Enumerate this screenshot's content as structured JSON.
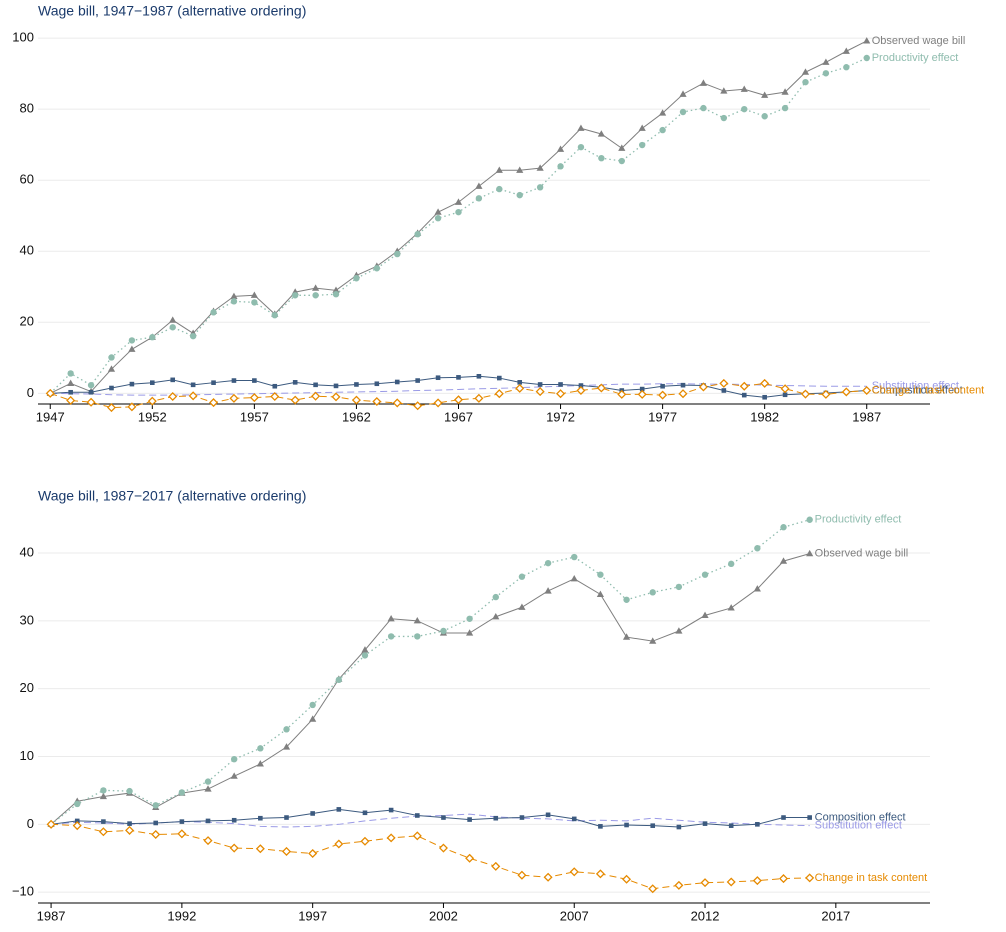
{
  "chart_data": [
    {
      "type": "line",
      "title": "Wage bill, 1947−1987 (alternative ordering)",
      "x": [
        1947,
        1948,
        1949,
        1950,
        1951,
        1952,
        1953,
        1954,
        1955,
        1956,
        1957,
        1958,
        1959,
        1960,
        1961,
        1962,
        1963,
        1964,
        1965,
        1966,
        1967,
        1968,
        1969,
        1970,
        1971,
        1972,
        1973,
        1974,
        1975,
        1976,
        1977,
        1978,
        1979,
        1980,
        1981,
        1982,
        1983,
        1984,
        1985,
        1986,
        1987
      ],
      "xlim": [
        1946.4,
        1990.1
      ],
      "xticks": [
        1947,
        1952,
        1957,
        1962,
        1967,
        1972,
        1977,
        1982,
        1987
      ],
      "ylim": [
        -3,
        102
      ],
      "yticks": [
        0,
        20,
        40,
        60,
        80,
        100
      ],
      "grid": true,
      "series": [
        {
          "name": "Observed wage bill",
          "color": "#7f7f7f",
          "marker": "triangle",
          "dash": "solid",
          "values": [
            0,
            2.8,
            0.5,
            6.8,
            12.4,
            15.8,
            20.6,
            16.9,
            23.1,
            27.3,
            27.6,
            22.3,
            28.5,
            29.6,
            29.0,
            33.2,
            35.8,
            40.0,
            45.1,
            51.0,
            53.8,
            58.3,
            62.8,
            62.8,
            63.4,
            68.7,
            74.6,
            73.0,
            69.0,
            74.6,
            78.9,
            84.2,
            87.3,
            85.1,
            85.6,
            83.9,
            84.8,
            90.4,
            93.2,
            96.3,
            99.2
          ]
        },
        {
          "name": "Productivity effect",
          "color": "#8fbcae",
          "marker": "circle",
          "dash": "dotted",
          "values": [
            0,
            5.6,
            2.3,
            10.1,
            14.9,
            15.8,
            18.6,
            16.1,
            22.8,
            25.9,
            25.6,
            22.0,
            27.6,
            27.6,
            27.9,
            32.4,
            35.2,
            39.2,
            44.8,
            49.3,
            51.0,
            54.9,
            57.5,
            55.8,
            58.0,
            63.9,
            69.3,
            66.2,
            65.4,
            69.9,
            74.1,
            79.2,
            80.3,
            77.5,
            80.0,
            78.0,
            80.3,
            87.6,
            90.1,
            91.8,
            94.4
          ]
        },
        {
          "name": "Substitution effect",
          "color": "#9a9ae6",
          "marker": "none",
          "dash": "dashed",
          "values": [
            0,
            -0.1,
            -0.2,
            -0.4,
            -0.5,
            -0.5,
            -0.5,
            -0.4,
            -0.3,
            -0.2,
            -0.1,
            0,
            0.1,
            0.2,
            0.3,
            0.4,
            0.5,
            0.6,
            0.8,
            0.9,
            1.1,
            1.3,
            1.4,
            1.6,
            1.8,
            2.0,
            2.2,
            2.4,
            2.6,
            2.6,
            2.7,
            2.7,
            2.6,
            2.6,
            2.5,
            2.3,
            2.2,
            2.1,
            2.0,
            2.0,
            2.0
          ]
        },
        {
          "name": "Composition effect",
          "color": "#3c5a7f",
          "marker": "square",
          "dash": "solid",
          "values": [
            0,
            0.3,
            0.3,
            1.5,
            2.6,
            3.0,
            3.8,
            2.4,
            3.0,
            3.6,
            3.6,
            2.0,
            3.1,
            2.4,
            2.1,
            2.5,
            2.7,
            3.2,
            3.6,
            4.4,
            4.5,
            4.8,
            4.3,
            3.1,
            2.5,
            2.5,
            2.2,
            1.7,
            0.8,
            1.2,
            2.0,
            2.3,
            2.2,
            0.8,
            -0.5,
            -1.1,
            -0.4,
            -0.1,
            0.1,
            0.4,
            0.8
          ]
        },
        {
          "name": "Change in task content",
          "color": "#e68a00",
          "marker": "diamond",
          "dash": "dashed",
          "values": [
            0,
            -2.0,
            -2.5,
            -4.0,
            -3.8,
            -2.2,
            -0.9,
            -0.7,
            -2.6,
            -1.4,
            -1.2,
            -0.9,
            -1.9,
            -0.8,
            -1.0,
            -1.9,
            -2.3,
            -2.7,
            -3.5,
            -2.7,
            -1.8,
            -1.4,
            -0.1,
            1.4,
            0.5,
            -0.1,
            0.8,
            1.5,
            -0.3,
            -0.3,
            -0.5,
            -0.1,
            1.8,
            2.8,
            2.0,
            2.8,
            1.3,
            -0.2,
            -0.3,
            0.4,
            0.8
          ]
        }
      ]
    },
    {
      "type": "line",
      "title": "Wage bill, 1987−2017 (alternative ordering)",
      "x": [
        1987,
        1988,
        1989,
        1990,
        1991,
        1992,
        1993,
        1994,
        1995,
        1996,
        1997,
        1998,
        1999,
        2000,
        2001,
        2002,
        2003,
        2004,
        2005,
        2006,
        2007,
        2008,
        2009,
        2010,
        2011,
        2012,
        2013,
        2014,
        2015,
        2016
      ],
      "xlim": [
        1986.5,
        2020.6
      ],
      "xticks": [
        1987,
        1992,
        1997,
        2002,
        2007,
        2012,
        2017
      ],
      "ylim": [
        -11.6,
        45.6
      ],
      "yticks": [
        {
          "value": -10,
          "label": "−10"
        },
        0,
        10,
        20,
        30,
        40
      ],
      "grid": true,
      "series": [
        {
          "name": "Observed wage bill",
          "color": "#7f7f7f",
          "marker": "triangle",
          "dash": "solid",
          "values": [
            0,
            3.4,
            4.1,
            4.6,
            2.5,
            4.6,
            5.2,
            7.1,
            8.9,
            11.4,
            15.5,
            21.4,
            25.7,
            30.3,
            30.0,
            28.2,
            28.2,
            30.6,
            32.0,
            34.4,
            36.2,
            33.9,
            27.6,
            27.0,
            28.5,
            30.8,
            31.9,
            34.7,
            38.8,
            39.9
          ]
        },
        {
          "name": "Productivity effect",
          "color": "#8fbcae",
          "marker": "circle",
          "dash": "dotted",
          "values": [
            0,
            3.0,
            5.0,
            4.9,
            2.8,
            4.7,
            6.3,
            9.6,
            11.2,
            14.0,
            17.6,
            21.3,
            24.9,
            27.7,
            27.7,
            28.5,
            30.3,
            33.5,
            36.5,
            38.5,
            39.4,
            36.8,
            33.1,
            34.2,
            35.0,
            36.8,
            38.4,
            40.7,
            43.8,
            44.9
          ]
        },
        {
          "name": "Substitution effect",
          "color": "#9a9ae6",
          "marker": "none",
          "dash": "dashed",
          "values": [
            0,
            0.3,
            0.2,
            0,
            0.2,
            0.4,
            0.3,
            0.1,
            -0.3,
            -0.4,
            -0.3,
            0,
            0.5,
            0.9,
            1.2,
            1.3,
            1.5,
            1.1,
            0.9,
            0.8,
            0.5,
            0.6,
            0.5,
            0.9,
            0.6,
            0.3,
            0.2,
            0.0,
            -0.1,
            -0.2
          ]
        },
        {
          "name": "Composition effect",
          "color": "#3c5a7f",
          "marker": "square",
          "dash": "solid",
          "values": [
            0,
            0.5,
            0.4,
            0.1,
            0.2,
            0.4,
            0.5,
            0.6,
            0.9,
            1.0,
            1.6,
            2.2,
            1.7,
            2.1,
            1.3,
            1.0,
            0.7,
            0.9,
            1.0,
            1.4,
            0.8,
            -0.3,
            -0.1,
            -0.2,
            -0.4,
            0.1,
            -0.2,
            0.0,
            1.0,
            1.0
          ]
        },
        {
          "name": "Change in task content",
          "color": "#e68a00",
          "marker": "diamond",
          "dash": "dashed",
          "values": [
            0,
            -0.2,
            -1.1,
            -0.9,
            -1.5,
            -1.4,
            -2.4,
            -3.5,
            -3.6,
            -4.0,
            -4.3,
            -2.9,
            -2.5,
            -2.0,
            -1.7,
            -3.5,
            -5.0,
            -6.2,
            -7.5,
            -7.8,
            -7.0,
            -7.3,
            -8.1,
            -9.5,
            -9.0,
            -8.6,
            -8.5,
            -8.3,
            -8.0,
            -7.9
          ]
        }
      ]
    }
  ]
}
